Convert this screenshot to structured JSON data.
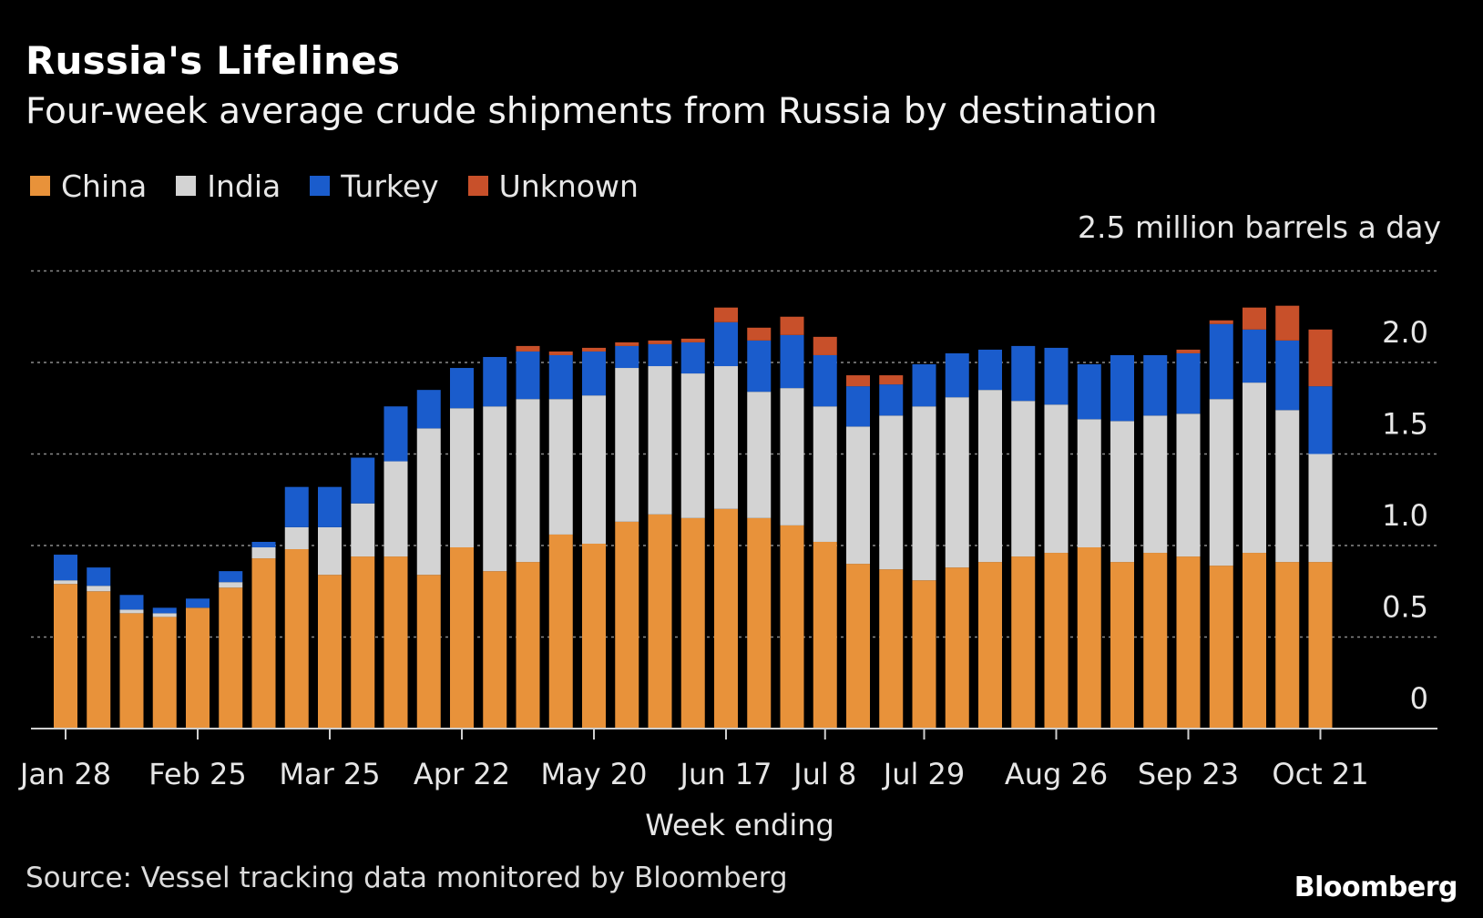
{
  "header": {
    "title": "Russia's Lifelines",
    "subtitle": "Four-week average crude shipments from Russia by destination"
  },
  "legend": {
    "items": [
      {
        "label": "China",
        "color": "#e8923a"
      },
      {
        "label": "India",
        "color": "#d3d3d3"
      },
      {
        "label": "Turkey",
        "color": "#1a5ccc"
      },
      {
        "label": "Unknown",
        "color": "#c8502a"
      }
    ]
  },
  "footer": {
    "source": "Source: Vessel tracking data monitored by Bloomberg",
    "brand": "Bloomberg"
  },
  "chart_data": {
    "type": "bar",
    "stacked": true,
    "title": "Russia's Lifelines",
    "subtitle": "Four-week average crude shipments from Russia by destination",
    "xlabel": "Week ending",
    "ylabel": "2.5 million barrels a day",
    "ylim": [
      0,
      2.5
    ],
    "yticks": [
      "0",
      "0.5",
      "1.0",
      "1.5",
      "2.0"
    ],
    "grid": true,
    "legend_position": "top-left",
    "x_tick_labels": [
      "Jan 28",
      "Feb 25",
      "Mar 25",
      "Apr 22",
      "May 20",
      "Jun 17",
      "Jul 8",
      "Jul 29",
      "Aug 26",
      "Sep 23",
      "Oct 21"
    ],
    "x_tick_indices": [
      0,
      4,
      8,
      12,
      16,
      20,
      23,
      26,
      30,
      34,
      38
    ],
    "categories": [
      "Jan 28",
      "Feb 4",
      "Feb 11",
      "Feb 18",
      "Feb 25",
      "Mar 4",
      "Mar 11",
      "Mar 18",
      "Mar 25",
      "Apr 1",
      "Apr 8",
      "Apr 15",
      "Apr 22",
      "Apr 29",
      "May 6",
      "May 13",
      "May 20",
      "May 27",
      "Jun 3",
      "Jun 10",
      "Jun 17",
      "Jun 24",
      "Jul 1",
      "Jul 8",
      "Jul 15",
      "Jul 22",
      "Jul 29",
      "Aug 5",
      "Aug 12",
      "Aug 19",
      "Aug 26",
      "Sep 2",
      "Sep 9",
      "Sep 16",
      "Sep 23",
      "Sep 30",
      "Oct 7",
      "Oct 14",
      "Oct 21"
    ],
    "series": [
      {
        "name": "China",
        "color": "#e8923a",
        "values": [
          0.79,
          0.75,
          0.63,
          0.61,
          0.66,
          0.77,
          0.93,
          0.98,
          0.84,
          0.94,
          0.94,
          0.84,
          0.99,
          0.86,
          0.91,
          1.06,
          1.01,
          1.13,
          1.17,
          1.15,
          1.2,
          1.15,
          1.11,
          1.02,
          0.9,
          0.87,
          0.81,
          0.88,
          0.91,
          0.94,
          0.96,
          0.99,
          0.91,
          0.96,
          0.94,
          0.89,
          0.96,
          0.91,
          0.91
        ]
      },
      {
        "name": "India",
        "color": "#d3d3d3",
        "values": [
          0.02,
          0.03,
          0.02,
          0.02,
          0.0,
          0.03,
          0.06,
          0.12,
          0.26,
          0.29,
          0.52,
          0.8,
          0.76,
          0.9,
          0.89,
          0.74,
          0.81,
          0.84,
          0.81,
          0.79,
          0.78,
          0.69,
          0.75,
          0.74,
          0.75,
          0.84,
          0.95,
          0.93,
          0.94,
          0.85,
          0.81,
          0.7,
          0.77,
          0.75,
          0.78,
          0.91,
          0.93,
          0.83,
          0.59
        ]
      },
      {
        "name": "Turkey",
        "color": "#1a5ccc",
        "values": [
          0.14,
          0.1,
          0.08,
          0.03,
          0.05,
          0.06,
          0.03,
          0.22,
          0.22,
          0.25,
          0.3,
          0.21,
          0.22,
          0.27,
          0.26,
          0.24,
          0.24,
          0.12,
          0.12,
          0.17,
          0.24,
          0.28,
          0.29,
          0.28,
          0.22,
          0.17,
          0.23,
          0.24,
          0.22,
          0.3,
          0.31,
          0.3,
          0.36,
          0.33,
          0.33,
          0.41,
          0.29,
          0.38,
          0.37
        ]
      },
      {
        "name": "Unknown",
        "color": "#c8502a",
        "values": [
          0.0,
          0.0,
          0.0,
          0.0,
          0.0,
          0.0,
          0.0,
          0.0,
          0.0,
          0.0,
          0.0,
          0.0,
          0.0,
          0.0,
          0.03,
          0.02,
          0.02,
          0.02,
          0.02,
          0.02,
          0.08,
          0.07,
          0.1,
          0.1,
          0.06,
          0.05,
          0.0,
          0.0,
          0.0,
          0.0,
          0.0,
          0.0,
          0.0,
          0.0,
          0.02,
          0.02,
          0.12,
          0.19,
          0.31
        ]
      }
    ]
  }
}
